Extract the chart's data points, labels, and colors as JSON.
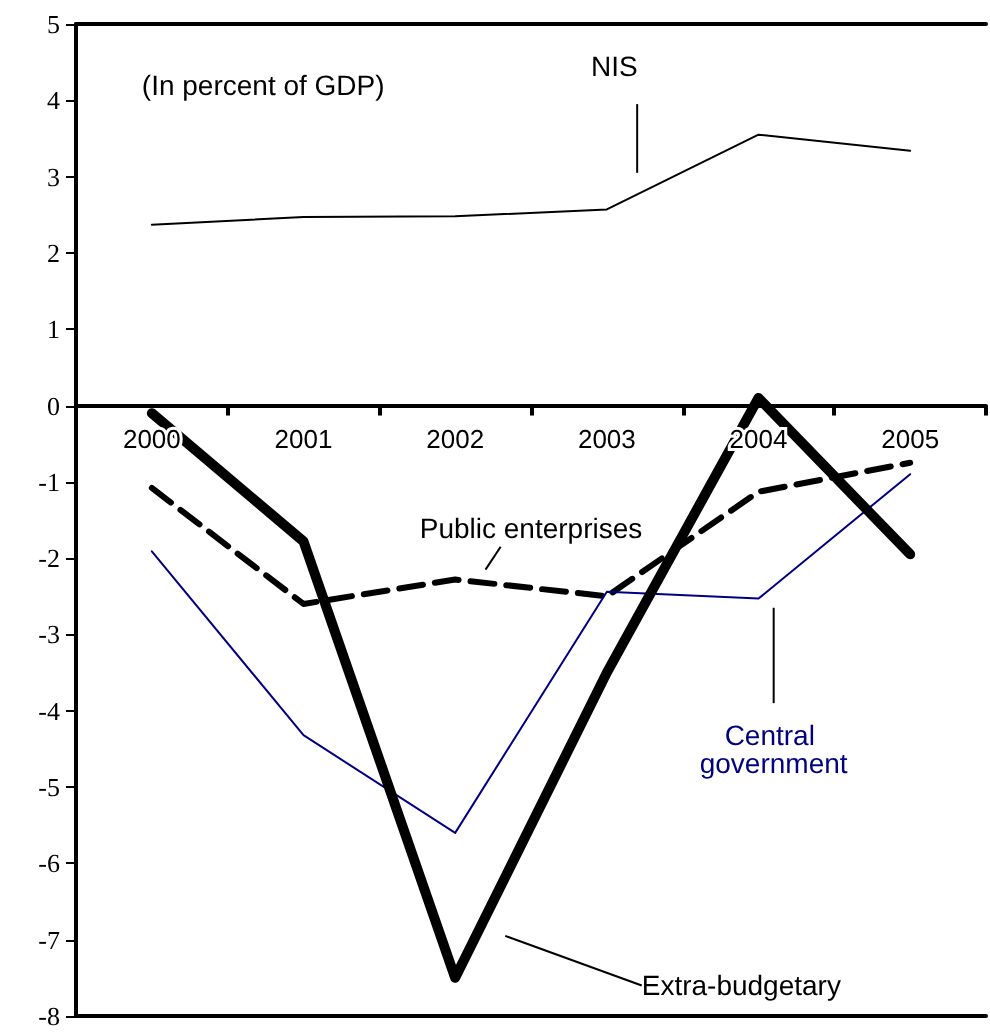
{
  "chart_data": {
    "type": "line",
    "annotations": [
      "(In percent of GDP)"
    ],
    "categories": [
      "2000",
      "2001",
      "2002",
      "2003",
      "2004",
      "2005"
    ],
    "series": [
      {
        "name": "NIS",
        "color": "#000000",
        "line_style": "solid",
        "values": [
          2.37,
          2.47,
          2.48,
          2.57,
          3.55,
          3.34
        ]
      },
      {
        "name": "Public enterprises",
        "color": "#000000",
        "line_style": "dashed",
        "values": [
          -1.08,
          -2.6,
          -2.28,
          -2.5,
          -1.13,
          -0.75
        ]
      },
      {
        "name": "Central government",
        "color": "#000080",
        "line_style": "solid",
        "values": [
          -1.91,
          -4.32,
          -5.6,
          -2.44,
          -2.53,
          -0.9
        ]
      },
      {
        "name": "Extra-budgetary",
        "color": "#000000",
        "line_style": "solid",
        "values": [
          -0.1,
          -1.78,
          -7.5,
          -3.5,
          0.1,
          -1.95
        ]
      }
    ],
    "ylim": [
      -8,
      5
    ],
    "yticks": [
      -8,
      -7,
      -6,
      -5,
      -4,
      -3,
      -2,
      -1,
      0,
      1,
      2,
      3,
      4,
      5
    ],
    "grid": false,
    "legend": false,
    "marker": "none"
  }
}
